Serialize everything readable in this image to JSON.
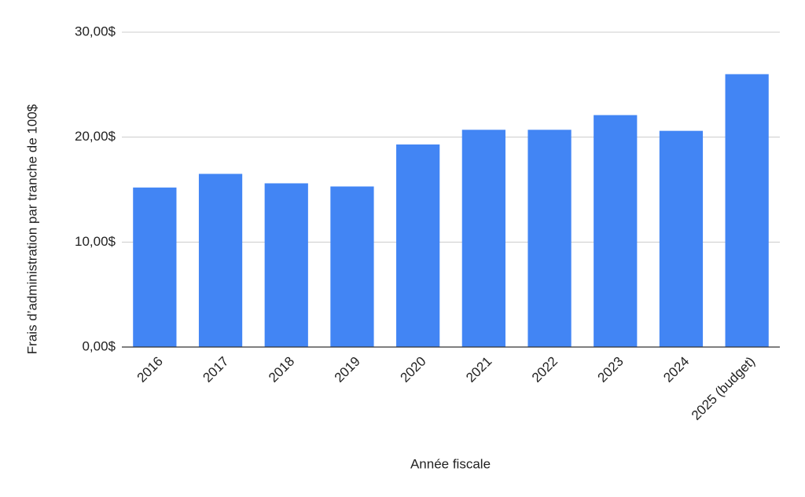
{
  "chart_data": {
    "type": "bar",
    "x_label": "Année fiscale",
    "y_label": "Frais d’administration par tranche de 100$",
    "categories": [
      "2016",
      "2017",
      "2018",
      "2019",
      "2020",
      "2021",
      "2022",
      "2023",
      "2024",
      "2025 (budget)"
    ],
    "values": [
      15.2,
      16.5,
      15.6,
      15.3,
      19.3,
      20.7,
      20.7,
      22.1,
      20.6,
      26.0
    ],
    "color": "#4285f4",
    "ylim": [
      0,
      30
    ],
    "yticks": [
      {
        "value": 0,
        "label": "0,00$"
      },
      {
        "value": 10,
        "label": "10,00$"
      },
      {
        "value": 20,
        "label": "20,00$"
      },
      {
        "value": 30,
        "label": "30,00$"
      }
    ],
    "grid": true
  }
}
